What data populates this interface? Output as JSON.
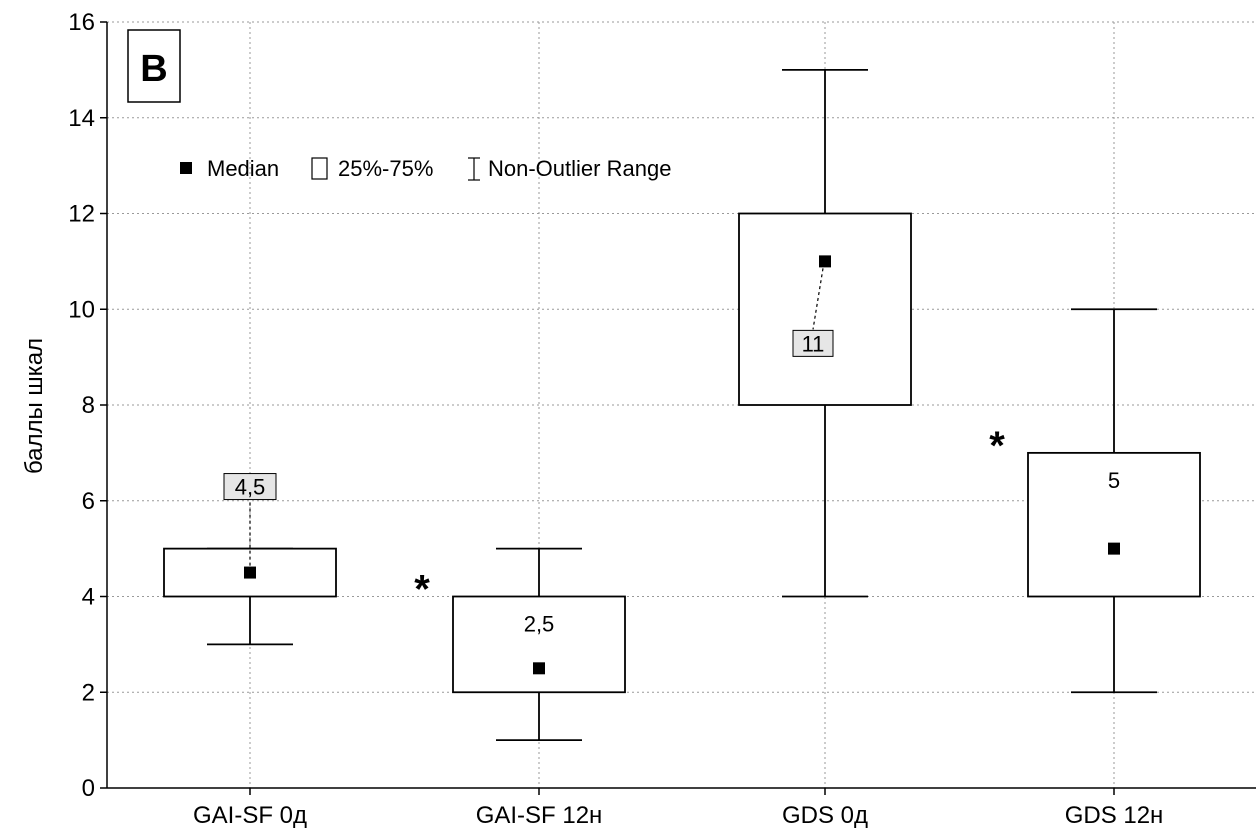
{
  "chart_data": {
    "type": "box",
    "panel_label": "B",
    "ylabel": "баллы шкал",
    "ylim": [
      0,
      16
    ],
    "yticks": [
      0,
      2,
      4,
      6,
      8,
      10,
      12,
      14,
      16
    ],
    "grid": true,
    "legend": {
      "placement": "top-left",
      "items": [
        {
          "symbol": "filled-square",
          "label": "Median"
        },
        {
          "symbol": "box",
          "label": "25%-75%"
        },
        {
          "symbol": "whisker",
          "label": "Non-Outlier Range"
        }
      ]
    },
    "categories": [
      "GAI-SF 0д",
      "GAI-SF 12н",
      "GDS 0д",
      "GDS 12н"
    ],
    "boxes": [
      {
        "category": "GAI-SF 0д",
        "min": 3,
        "q1": 4,
        "median": 4.5,
        "q3": 5,
        "max": 5,
        "median_label": "4,5",
        "label_style": "callout-above",
        "significant": false
      },
      {
        "category": "GAI-SF 12н",
        "min": 1,
        "q1": 2,
        "median": 2.5,
        "q3": 4,
        "max": 5,
        "median_label": "2,5",
        "label_style": "inside",
        "significant": true
      },
      {
        "category": "GDS 0д",
        "min": 4,
        "q1": 8,
        "median": 11,
        "q3": 12,
        "max": 15,
        "median_label": "11",
        "label_style": "callout-below",
        "significant": false
      },
      {
        "category": "GDS 12н",
        "min": 2,
        "q1": 4,
        "median": 5,
        "q3": 7,
        "max": 10,
        "median_label": "5",
        "label_style": "inside",
        "significant": true
      }
    ],
    "significance_marker": "*"
  }
}
